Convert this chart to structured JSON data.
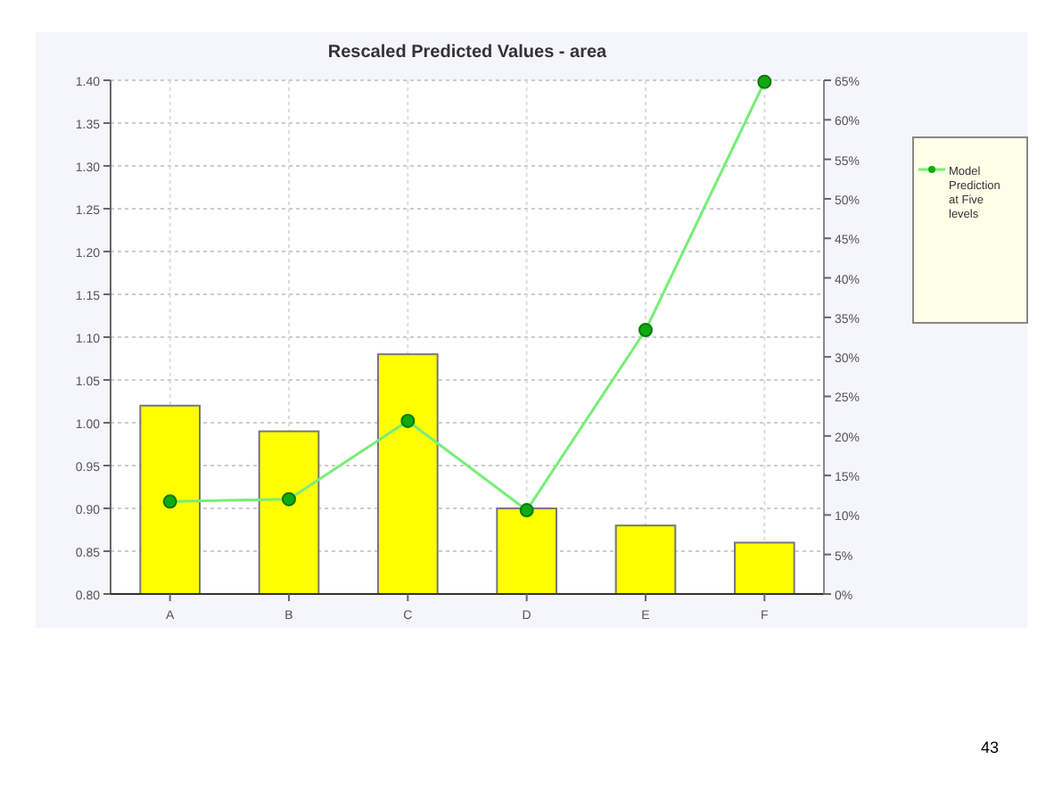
{
  "chart_data": {
    "type": "bar",
    "title": "Rescaled Predicted Values - area",
    "categories": [
      "A",
      "B",
      "C",
      "D",
      "E",
      "F"
    ],
    "series": [
      {
        "color": "#ffff00",
        "values": [
          1.02,
          0.99,
          1.08,
          0.9,
          0.88,
          0.86
        ]
      },
      {
        "type": "line",
        "axis": "y2",
        "name": "Model Prediction at Five levels",
        "color": "#77ee77",
        "values": [
          11.7,
          12,
          21.9,
          10.6,
          33.4,
          64.8
        ]
      }
    ],
    "ylim": [
      0.8,
      1.4
    ],
    "yticks": [
      {
        "value": 0.8,
        "label": "0.80"
      },
      {
        "value": 0.85,
        "label": "0.85"
      },
      {
        "value": 0.9,
        "label": "0.90"
      },
      {
        "value": 0.95,
        "label": "0.95"
      },
      {
        "value": 1,
        "label": "1.00"
      },
      {
        "value": 1.05,
        "label": "1.05"
      },
      {
        "value": 1.1,
        "label": "1.10"
      },
      {
        "value": 1.15,
        "label": "1.15"
      },
      {
        "value": 1.2,
        "label": "1.20"
      },
      {
        "value": 1.25,
        "label": "1.25"
      },
      {
        "value": 1.3,
        "label": "1.30"
      },
      {
        "value": 1.35,
        "label": "1.35"
      },
      {
        "value": 1.4,
        "label": "1.40"
      }
    ],
    "y2lim": [
      0,
      65
    ],
    "y2ticks": [
      {
        "value": 0,
        "label": "0%"
      },
      {
        "value": 5,
        "label": "5%"
      },
      {
        "value": 10,
        "label": "10%"
      },
      {
        "value": 15,
        "label": "15%"
      },
      {
        "value": 20,
        "label": "20%"
      },
      {
        "value": 25,
        "label": "25%"
      },
      {
        "value": 30,
        "label": "30%"
      },
      {
        "value": 35,
        "label": "35%"
      },
      {
        "value": 40,
        "label": "40%"
      },
      {
        "value": 45,
        "label": "45%"
      },
      {
        "value": 50,
        "label": "50%"
      },
      {
        "value": 55,
        "label": "55%"
      },
      {
        "value": 60,
        "label": "60%"
      },
      {
        "value": 65,
        "label": "65%"
      }
    ],
    "grid": true,
    "legend": "right",
    "marker": "circle",
    "annotations": [
      "43"
    ]
  }
}
